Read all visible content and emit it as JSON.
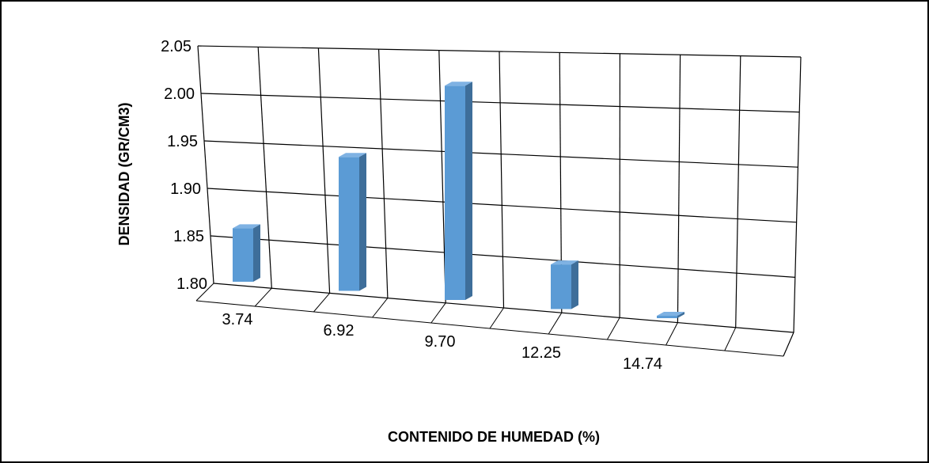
{
  "chart_data": {
    "type": "bar",
    "categories": [
      "3.74",
      "6.92",
      "9.70",
      "12.25",
      "14.74"
    ],
    "values": [
      1.86,
      1.95,
      2.04,
      1.85,
      1.78
    ],
    "title": "",
    "xlabel": "CONTENIDO DE HUMEDAD (%)",
    "ylabel": "DENSIDAD (GR/CM3)",
    "ylim": [
      1.8,
      2.05
    ],
    "yticks": [
      "1.80",
      "1.85",
      "1.90",
      "1.95",
      "2.00",
      "2.05"
    ],
    "grid": true,
    "legend": "none",
    "colors": {
      "bar_front": "#5B9BD5",
      "bar_side": "#3E6E9A",
      "bar_top": "#7FB2E3",
      "grid": "#000000",
      "frame": "#000000"
    }
  }
}
